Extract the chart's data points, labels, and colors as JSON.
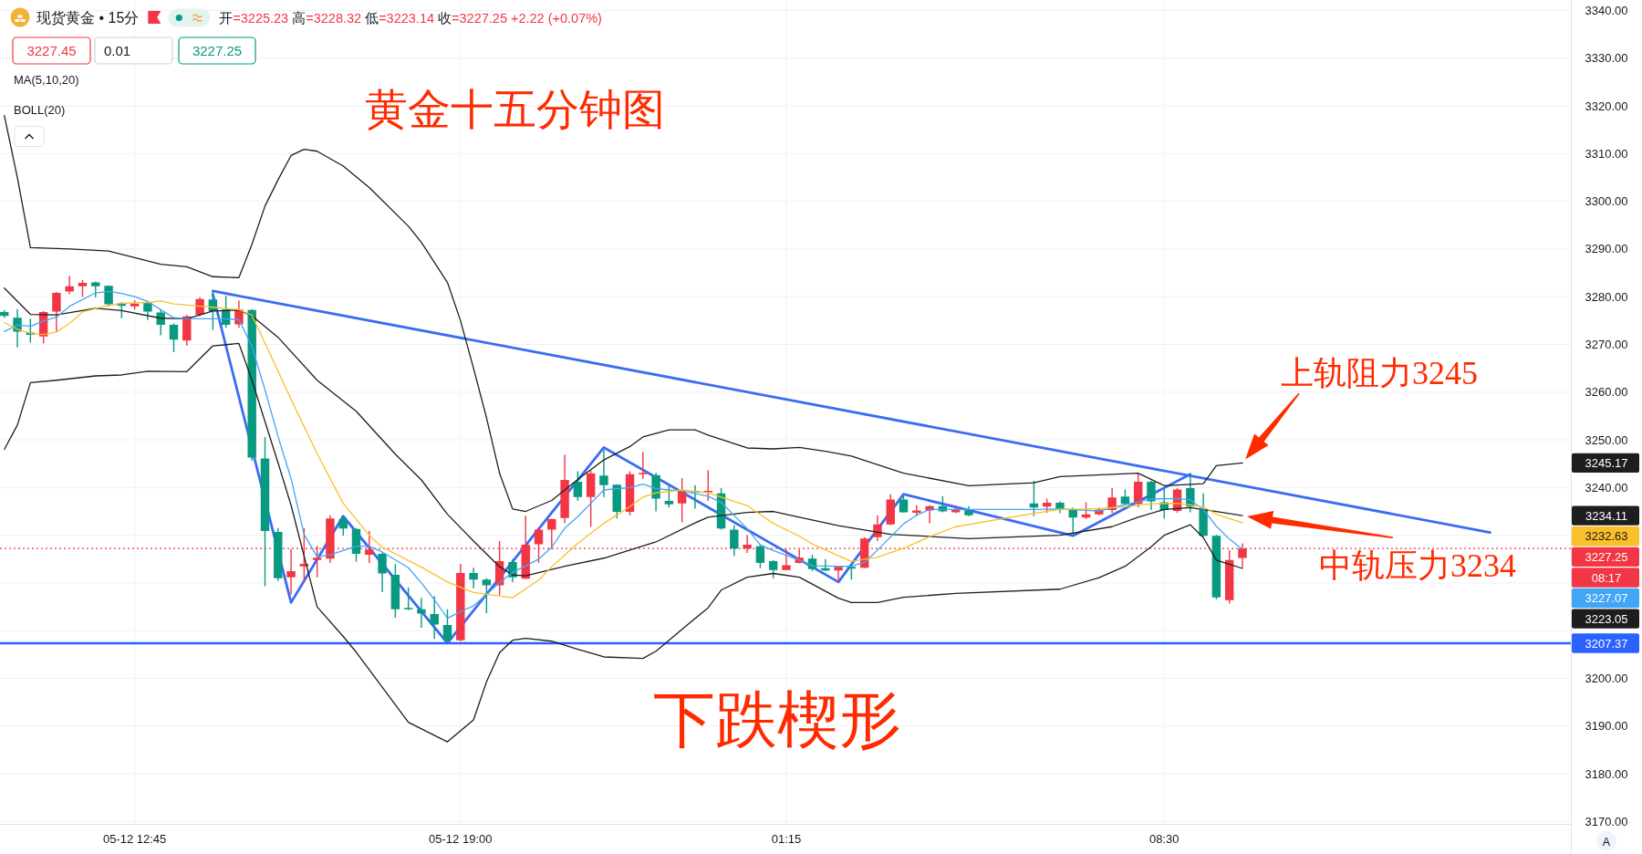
{
  "chart_data": {
    "type": "candlestick",
    "title": "黄金十五分钟图",
    "subtitle": "现货黄金 • 15分",
    "annotations": [
      "开=3225.23 高=3228.32 低=3223.14 收=3227.25 +2.22 (+0.07%)",
      "3227.45",
      "0.01",
      "3227.25",
      "MA(5,10,20)",
      "BOLL(20)",
      "3245.17",
      "3234.11",
      "3232.63",
      "08:17",
      "3227.07",
      "3223.05",
      "A",
      "下跌楔形",
      {
        "text": "上轨阻力3245",
        "x": "--05-13T10:00",
        "y": 3245.17
      },
      {
        "text": "中轨压力3234",
        "x": "--05-13T10:00",
        "y": 3234.11
      }
    ],
    "x": [
      "--05-12T10:15",
      "--05-12T10:30",
      "--05-12T10:45",
      "--05-12T11:00",
      "--05-12T11:15",
      "--05-12T11:30",
      "--05-12T11:45",
      "--05-12T12:00",
      "--05-12T12:15",
      "--05-12T12:30",
      "--05-12T12:45",
      "--05-12T13:00",
      "--05-12T13:15",
      "--05-12T13:30",
      "--05-12T13:45",
      "--05-12T14:00",
      "--05-12T14:15",
      "--05-12T14:30",
      "--05-12T14:45",
      "--05-12T15:00",
      "--05-12T15:15",
      "--05-12T15:30",
      "--05-12T15:45",
      "--05-12T16:00",
      "--05-12T16:15",
      "--05-12T16:30",
      "--05-12T16:45",
      "--05-12T17:00",
      "--05-12T17:15",
      "--05-12T17:30",
      "--05-12T17:45",
      "--05-12T18:00",
      "--05-12T18:15",
      "--05-12T18:30",
      "--05-12T18:45",
      "--05-12T19:00",
      "--05-12T19:15",
      "--05-12T19:30",
      "--05-12T19:45",
      "--05-12T20:00",
      "--05-12T20:15",
      "--05-12T20:30",
      "--05-12T20:45",
      "--05-12T21:00",
      "--05-12T21:15",
      "--05-12T21:30",
      "--05-12T21:45",
      "--05-12T22:00",
      "--05-12T22:15",
      "--05-12T22:30",
      "--05-12T22:45",
      "--05-12T23:00",
      "--05-12T23:15",
      "--05-12T23:30",
      "--05-12T23:45",
      "--05-13T00:00",
      "--05-13T00:15",
      "--05-13T00:30",
      "--05-13T00:45",
      "--05-13T01:00",
      "--05-13T01:15",
      "--05-13T01:30",
      "--05-13T01:45",
      "--05-13T02:00",
      "--05-13T02:15",
      "--05-13T02:30",
      "--05-13T02:45",
      "--05-13T03:00",
      "--05-13T03:15",
      "--05-13T03:30",
      "--05-13T03:45",
      "--05-13T04:00",
      "--05-13T04:15",
      "--05-13T04:30",
      "--05-13T04:45",
      "--05-13T06:00",
      "--05-13T06:15",
      "--05-13T06:30",
      "--05-13T06:45",
      "--05-13T07:00",
      "--05-13T07:15",
      "--05-13T07:30",
      "--05-13T07:45",
      "--05-13T08:00",
      "--05-13T08:15",
      "--05-13T08:30",
      "--05-13T08:45",
      "--05-13T09:00",
      "--05-13T09:15",
      "--05-13T09:30",
      "--05-13T09:45",
      "--05-13T10:00"
    ],
    "ohlc": [
      [
        3276.8,
        3277.2,
        3275.6,
        3276.0
      ],
      [
        3275.6,
        3277.4,
        3269.4,
        3272.7
      ],
      [
        3272.5,
        3275.4,
        3270.4,
        3272.0
      ],
      [
        3271.7,
        3277.0,
        3270.2,
        3276.8
      ],
      [
        3276.9,
        3281.0,
        3272.7,
        3280.8
      ],
      [
        3281.1,
        3284.4,
        3280.5,
        3282.2
      ],
      [
        3282.2,
        3283.5,
        3280.0,
        3282.9
      ],
      [
        3283.0,
        3283.2,
        3279.9,
        3282.2
      ],
      [
        3282.3,
        3282.4,
        3278.0,
        3278.4
      ],
      [
        3278.6,
        3278.9,
        3275.5,
        3278.1
      ],
      [
        3278.0,
        3279.3,
        3277.3,
        3278.5
      ],
      [
        3278.8,
        3279.2,
        3275.1,
        3276.9
      ],
      [
        3276.7,
        3277.3,
        3271.9,
        3274.1
      ],
      [
        3274.1,
        3274.4,
        3268.4,
        3271.0
      ],
      [
        3270.8,
        3276.2,
        3269.7,
        3275.9
      ],
      [
        3276.2,
        3279.9,
        3275.9,
        3279.5
      ],
      [
        3279.4,
        3281.4,
        3273.0,
        3277.0
      ],
      [
        3277.3,
        3280.2,
        3273.5,
        3274.1
      ],
      [
        3274.2,
        3279.2,
        3273.5,
        3277.3
      ],
      [
        3277.2,
        3277.4,
        3245.6,
        3246.3
      ],
      [
        3246.1,
        3250.6,
        3219.3,
        3230.9
      ],
      [
        3230.7,
        3231.5,
        3220.4,
        3221.0
      ],
      [
        3221.2,
        3227.1,
        3217.6,
        3222.5
      ],
      [
        3223.5,
        3231.5,
        3220.2,
        3224.0
      ],
      [
        3224.8,
        3227.8,
        3221.2,
        3225.3
      ],
      [
        3225.1,
        3234.2,
        3224.2,
        3233.5
      ],
      [
        3233.4,
        3234.1,
        3229.9,
        3231.4
      ],
      [
        3231.3,
        3231.5,
        3224.5,
        3226.1
      ],
      [
        3225.9,
        3230.9,
        3224.2,
        3227.0
      ],
      [
        3226.1,
        3226.4,
        3218.1,
        3222.0
      ],
      [
        3221.7,
        3223.9,
        3212.7,
        3214.5
      ],
      [
        3214.8,
        3219.1,
        3214.3,
        3214.5
      ],
      [
        3214.5,
        3216.9,
        3210.6,
        3213.6
      ],
      [
        3213.5,
        3217.2,
        3208.3,
        3211.3
      ],
      [
        3211.2,
        3214.5,
        3207.4,
        3208.0
      ],
      [
        3208.0,
        3224.0,
        3207.8,
        3222.1
      ],
      [
        3222.1,
        3223.2,
        3218.9,
        3220.7
      ],
      [
        3220.7,
        3221.0,
        3213.7,
        3219.5
      ],
      [
        3219.5,
        3228.8,
        3217.4,
        3224.6
      ],
      [
        3224.4,
        3225.0,
        3220.2,
        3221.2
      ],
      [
        3220.9,
        3234.1,
        3220.8,
        3228.0
      ],
      [
        3228.1,
        3231.6,
        3224.2,
        3231.2
      ],
      [
        3231.2,
        3233.5,
        3227.1,
        3233.4
      ],
      [
        3233.6,
        3246.9,
        3232.5,
        3241.6
      ],
      [
        3241.2,
        3243.4,
        3237.2,
        3238.0
      ],
      [
        3238.0,
        3243.5,
        3231.8,
        3243.0
      ],
      [
        3242.5,
        3247.9,
        3238.0,
        3240.5
      ],
      [
        3240.6,
        3240.7,
        3233.5,
        3234.9
      ],
      [
        3234.9,
        3243.4,
        3234.2,
        3242.8
      ],
      [
        3242.8,
        3247.5,
        3241.8,
        3243.1
      ],
      [
        3242.6,
        3243.1,
        3235.0,
        3237.7
      ],
      [
        3237.2,
        3240.4,
        3235.8,
        3236.5
      ],
      [
        3236.7,
        3242.0,
        3232.7,
        3239.1
      ],
      [
        3239.3,
        3240.5,
        3235.6,
        3239.0
      ],
      [
        3239.0,
        3243.6,
        3237.2,
        3239.3
      ],
      [
        3238.8,
        3239.9,
        3231.2,
        3231.4
      ],
      [
        3231.2,
        3232.1,
        3225.7,
        3227.2
      ],
      [
        3227.2,
        3230.1,
        3226.3,
        3228.0
      ],
      [
        3227.7,
        3228.0,
        3223.1,
        3224.2
      ],
      [
        3224.6,
        3224.8,
        3221.0,
        3222.7
      ],
      [
        3222.7,
        3227.1,
        3222.6,
        3223.7
      ],
      [
        3224.2,
        3227.0,
        3224.1,
        3225.3
      ],
      [
        3225.1,
        3225.9,
        3222.5,
        3222.9
      ],
      [
        3223.1,
        3225.0,
        3222.5,
        3222.6
      ],
      [
        3222.6,
        3223.6,
        3220.2,
        3223.4
      ],
      [
        3223.4,
        3223.6,
        3220.7,
        3223.0
      ],
      [
        3223.2,
        3229.6,
        3223.1,
        3229.3
      ],
      [
        3229.6,
        3234.2,
        3228.8,
        3232.3
      ],
      [
        3232.3,
        3238.6,
        3232.1,
        3237.5
      ],
      [
        3237.5,
        3238.2,
        3234.7,
        3234.8
      ],
      [
        3234.7,
        3236.3,
        3234.0,
        3235.2
      ],
      [
        3235.2,
        3236.3,
        3232.5,
        3236.1
      ],
      [
        3236.1,
        3238.2,
        3234.8,
        3235.0
      ],
      [
        3234.8,
        3236.3,
        3234.6,
        3235.3
      ],
      [
        3235.1,
        3236.1,
        3234.0,
        3234.2
      ],
      [
        3236.7,
        3241.4,
        3234.0,
        3235.8
      ],
      [
        3236.0,
        3237.7,
        3234.7,
        3236.8
      ],
      [
        3236.8,
        3237.1,
        3234.6,
        3235.6
      ],
      [
        3235.5,
        3235.8,
        3230.1,
        3233.7
      ],
      [
        3233.7,
        3236.9,
        3233.4,
        3234.4
      ],
      [
        3234.4,
        3235.8,
        3234.2,
        3235.4
      ],
      [
        3235.3,
        3239.9,
        3234.6,
        3237.9
      ],
      [
        3238.1,
        3239.6,
        3236.3,
        3236.6
      ],
      [
        3236.6,
        3242.8,
        3235.8,
        3241.2
      ],
      [
        3241.2,
        3241.4,
        3235.3,
        3237.1
      ],
      [
        3236.9,
        3239.8,
        3233.5,
        3235.3
      ],
      [
        3235.1,
        3239.9,
        3234.7,
        3239.6
      ],
      [
        3239.9,
        3242.8,
        3234.8,
        3236.0
      ],
      [
        3235.4,
        3238.8,
        3229.7,
        3229.9
      ],
      [
        3229.9,
        3230.1,
        3216.6,
        3217.0
      ],
      [
        3216.4,
        3226.9,
        3215.7,
        3224.8
      ],
      [
        3225.23,
        3228.32,
        3223.14,
        3227.25
      ]
    ],
    "colors": [
      "#089981",
      "#089981",
      "#089981",
      "#f23645",
      "#f23645",
      "#f23645",
      "#f23645",
      "#089981",
      "#089981",
      "#089981",
      "#f23645",
      "#089981",
      "#089981",
      "#089981",
      "#f23645",
      "#f23645",
      "#089981",
      "#089981",
      "#f23645",
      "#089981",
      "#089981",
      "#089981",
      "#f23645",
      "#f23645",
      "#f23645",
      "#f23645",
      "#089981",
      "#089981",
      "#f23645",
      "#089981",
      "#089981",
      "#089981",
      "#089981",
      "#089981",
      "#089981",
      "#f23645",
      "#089981",
      "#089981",
      "#f23645",
      "#089981",
      "#f23645",
      "#f23645",
      "#f23645",
      "#f23645",
      "#089981",
      "#f23645",
      "#089981",
      "#089981",
      "#f23645",
      "#f23645",
      "#089981",
      "#089981",
      "#f23645",
      "#089981",
      "#f23645",
      "#089981",
      "#089981",
      "#f23645",
      "#089981",
      "#089981",
      "#f23645",
      "#f23645",
      "#089981",
      "#089981",
      "#f23645",
      "#089981",
      "#f23645",
      "#f23645",
      "#f23645",
      "#089981",
      "#f23645",
      "#f23645",
      "#089981",
      "#f23645",
      "#089981",
      "#089981",
      "#f23645",
      "#089981",
      "#089981",
      "#f23645",
      "#f23645",
      "#f23645",
      "#089981",
      "#f23645",
      "#089981",
      "#089981",
      "#f23645",
      "#089981",
      "#089981",
      "#089981",
      "#f23645",
      "#f23645"
    ],
    "series": [
      {
        "type": "line",
        "color": "#1e1e1e",
        "x": [
          "--05-12T10:15",
          "--05-12T10:30",
          "--05-12T10:45",
          "--05-12T11:30",
          "--05-12T12:15",
          "--05-12T13:15",
          "--05-12T13:45",
          "--05-12T14:15",
          "--05-12T14:45",
          "--05-12T15:00",
          "--05-12T15:15",
          "--05-12T15:30",
          "--05-12T15:45",
          "--05-12T16:00",
          "--05-12T16:15",
          "--05-12T16:45",
          "--05-12T17:15",
          "--05-12T18:00",
          "--05-12T18:15",
          "--05-12T18:45",
          "--05-12T19:00",
          "--05-12T19:15",
          "--05-12T19:30",
          "--05-12T19:45",
          "--05-12T20:00",
          "--05-12T20:15",
          "--05-12T20:45",
          "--05-12T21:15",
          "--05-12T21:45",
          "--05-12T22:15",
          "--05-12T22:30",
          "--05-12T23:00",
          "--05-12T23:30",
          "--05-12T23:45",
          "--05-13T00:30",
          "--05-13T01:00",
          "--05-13T01:30",
          "--05-13T02:00",
          "--05-13T02:30",
          "--05-13T03:30",
          "--05-13T04:45",
          "--05-13T06:00",
          "--05-13T06:30",
          "--05-13T08:00",
          "--05-13T08:30",
          "--05-13T09:15",
          "--05-13T09:30",
          "--05-13T10:00"
        ],
        "values": [
          3318,
          3305,
          3290.3,
          3290,
          3289.6,
          3286.8,
          3286.3,
          3284.2,
          3284,
          3291,
          3299,
          3304.5,
          3309.6,
          3310.9,
          3310.5,
          3307.4,
          3302.9,
          3294.8,
          3291.4,
          3283,
          3275,
          3265,
          3254.6,
          3243,
          3235.5,
          3235,
          3237.3,
          3241.7,
          3245.8,
          3248.6,
          3250.6,
          3252.1,
          3252.1,
          3251,
          3248.3,
          3248.1,
          3248.4,
          3247.6,
          3246.6,
          3243,
          3240.4,
          3241,
          3242.3,
          3243,
          3240.4,
          3240.8,
          3244.6,
          3245.17
        ]
      },
      {
        "type": "line",
        "color": "#1e1e1e",
        "x": [
          "--05-12T10:15",
          "--05-12T10:45",
          "--05-12T11:15",
          "--05-12T12:00",
          "--05-12T12:30",
          "--05-12T13:15",
          "--05-12T13:45",
          "--05-12T14:15",
          "--05-12T14:45",
          "--05-12T15:00",
          "--05-12T15:30",
          "--05-12T16:15",
          "--05-12T17:00",
          "--05-12T17:45",
          "--05-12T18:15",
          "--05-12T18:45",
          "--05-12T19:15",
          "--05-12T19:45",
          "--05-12T20:00",
          "--05-12T20:15",
          "--05-12T21:00",
          "--05-12T21:45",
          "--05-12T22:45",
          "--05-12T23:30",
          "--05-12T23:45",
          "--05-13T00:30",
          "--05-13T01:00",
          "--05-13T01:30",
          "--05-13T02:15",
          "--05-13T03:15",
          "--05-13T04:45",
          "--05-13T06:30",
          "--05-13T07:30",
          "--05-13T08:00",
          "--05-13T08:30",
          "--05-13T09:00",
          "--05-13T09:30",
          "--05-13T10:00"
        ],
        "values": [
          3281.8,
          3276.3,
          3276.2,
          3277.6,
          3277.1,
          3275.5,
          3275.4,
          3277,
          3277.2,
          3276,
          3271.5,
          3262.5,
          3256,
          3247,
          3241.6,
          3234.4,
          3228.8,
          3223.4,
          3221.7,
          3221.5,
          3223.5,
          3225.2,
          3228.6,
          3232.6,
          3233.8,
          3234.8,
          3235,
          3233.8,
          3232,
          3230.2,
          3229.3,
          3230,
          3231.8,
          3233.8,
          3235.4,
          3235.8,
          3235,
          3234.11
        ]
      },
      {
        "type": "line",
        "color": "#1e1e1e",
        "x": [
          "--05-12T10:15",
          "--05-12T10:30",
          "--05-12T10:45",
          "--05-12T11:15",
          "--05-12T12:00",
          "--05-12T12:30",
          "--05-12T13:00",
          "--05-12T13:45",
          "--05-12T14:15",
          "--05-12T14:45",
          "--05-12T15:00",
          "--05-12T15:30",
          "--05-12T15:45",
          "--05-12T16:15",
          "--05-12T16:45",
          "--05-12T17:00",
          "--05-12T18:00",
          "--05-12T18:45",
          "--05-12T19:15",
          "--05-12T19:30",
          "--05-12T19:45",
          "--05-12T20:00",
          "--05-12T20:15",
          "--05-12T20:45",
          "--05-12T21:15",
          "--05-12T21:45",
          "--05-12T22:30",
          "--05-12T22:45",
          "--05-12T23:15",
          "--05-12T23:45",
          "--05-13T00:00",
          "--05-13T00:30",
          "--05-13T01:00",
          "--05-13T01:30",
          "--05-13T02:15",
          "--05-13T02:30",
          "--05-13T03:00",
          "--05-13T03:30",
          "--05-13T04:30",
          "--05-13T06:30",
          "--05-13T07:15",
          "--05-13T07:45",
          "--05-13T08:15",
          "--05-13T08:30",
          "--05-13T09:00",
          "--05-13T09:15",
          "--05-13T09:30",
          "--05-13T10:00"
        ],
        "values": [
          3248,
          3253.1,
          3262,
          3262.5,
          3263.4,
          3263.6,
          3264.4,
          3264.3,
          3269.7,
          3270.2,
          3262.5,
          3245.2,
          3236.3,
          3215,
          3208.8,
          3205.5,
          3190.8,
          3186.7,
          3191.3,
          3199.3,
          3205.4,
          3208,
          3208.4,
          3207.8,
          3206.1,
          3204.5,
          3204.2,
          3205.7,
          3210.3,
          3214.8,
          3218.5,
          3221.2,
          3222,
          3221.2,
          3216.8,
          3215.9,
          3215.9,
          3217,
          3217.8,
          3218.7,
          3221.1,
          3223.5,
          3227.6,
          3230,
          3232.2,
          3229.5,
          3224.8,
          3223.05
        ]
      },
      {
        "type": "line",
        "color": "#42a5f5",
        "x": [
          "--05-12T10:15",
          "--05-12T10:30",
          "--05-12T10:45",
          "--05-12T11:00",
          "--05-12T11:15",
          "--05-12T11:30",
          "--05-12T12:00",
          "--05-12T12:15",
          "--05-12T12:30",
          "--05-12T12:45",
          "--05-12T13:00",
          "--05-12T13:15",
          "--05-12T13:30",
          "--05-12T13:45",
          "--05-12T14:15",
          "--05-12T14:30",
          "--05-12T14:45",
          "--05-12T15:00",
          "--05-12T15:15",
          "--05-12T15:30",
          "--05-12T15:45",
          "--05-12T16:00",
          "--05-12T16:15",
          "--05-12T16:30",
          "--05-12T17:00",
          "--05-12T17:15",
          "--05-12T17:30",
          "--05-12T18:00",
          "--05-12T18:15",
          "--05-12T18:30",
          "--05-12T18:45",
          "--05-12T19:00",
          "--05-12T19:15",
          "--05-12T19:30",
          "--05-12T19:45",
          "--05-12T20:00",
          "--05-12T20:30",
          "--05-12T20:45",
          "--05-12T21:00",
          "--05-12T21:15",
          "--05-12T21:30",
          "--05-12T21:45",
          "--05-12T22:15",
          "--05-12T22:30",
          "--05-12T22:45",
          "--05-12T23:00",
          "--05-12T23:15",
          "--05-12T23:45",
          "--05-13T00:00",
          "--05-13T00:30",
          "--05-13T00:45",
          "--05-13T01:00",
          "--05-13T01:30",
          "--05-13T01:45",
          "--05-13T02:15",
          "--05-13T02:30",
          "--05-13T02:45",
          "--05-13T03:00",
          "--05-13T03:30",
          "--05-13T03:45",
          "--05-13T04:00",
          "--05-13T04:30",
          "--05-13T06:00",
          "--05-13T06:30",
          "--05-13T07:15",
          "--05-13T07:45",
          "--05-13T08:15",
          "--05-13T08:45",
          "--05-13T09:00",
          "--05-13T09:15",
          "--05-13T09:30",
          "--05-13T09:45",
          "--05-13T10:00"
        ],
        "values": [
          3272.7,
          3274.1,
          3273.8,
          3274.9,
          3275.7,
          3278,
          3280.8,
          3281.1,
          3280.7,
          3280,
          3279,
          3277.3,
          3275.6,
          3275.4,
          3275.4,
          3275.4,
          3275.2,
          3269.6,
          3260.5,
          3250.7,
          3241.9,
          3230.2,
          3225.5,
          3225.9,
          3227.7,
          3227.7,
          3226.5,
          3223.2,
          3220,
          3216.5,
          3212.6,
          3214,
          3215.2,
          3217.6,
          3220.1,
          3222.2,
          3225,
          3227.5,
          3231.5,
          3233.9,
          3236.7,
          3239.5,
          3240,
          3240.7,
          3239.8,
          3239.5,
          3239.3,
          3238.2,
          3236.9,
          3231.4,
          3228,
          3226.8,
          3224.8,
          3223.6,
          3223.5,
          3223.5,
          3224.3,
          3226.9,
          3232.4,
          3234.2,
          3235.4,
          3235.4,
          3235.4,
          3235.5,
          3235.1,
          3236.4,
          3237.6,
          3237.7,
          3237.4,
          3235.4,
          3231.9,
          3229.2,
          3227.07
        ]
      },
      {
        "type": "line",
        "color": "#f9c02a",
        "x": [
          "--05-12T10:15",
          "--05-12T10:30",
          "--05-12T10:45",
          "--05-12T11:00",
          "--05-12T11:15",
          "--05-12T11:30",
          "--05-12T11:45",
          "--05-12T12:15",
          "--05-12T12:30",
          "--05-12T13:00",
          "--05-12T13:15",
          "--05-12T13:30",
          "--05-12T14:00",
          "--05-12T14:15",
          "--05-12T14:45",
          "--05-12T15:00",
          "--05-12T15:15",
          "--05-12T15:30",
          "--05-12T15:45",
          "--05-12T16:15",
          "--05-12T16:45",
          "--05-12T17:15",
          "--05-12T17:30",
          "--05-12T18:15",
          "--05-12T18:45",
          "--05-12T19:15",
          "--05-12T20:00",
          "--05-12T20:30",
          "--05-12T20:45",
          "--05-12T21:15",
          "--05-12T21:45",
          "--05-12T22:15",
          "--05-12T22:30",
          "--05-12T22:45",
          "--05-12T23:15",
          "--05-12T23:45",
          "--05-13T00:30",
          "--05-13T01:00",
          "--05-13T01:30",
          "--05-13T01:45",
          "--05-13T02:15",
          "--05-13T02:30",
          "--05-13T03:00",
          "--05-13T03:30",
          "--05-13T04:00",
          "--05-13T04:30",
          "--05-13T06:00",
          "--05-13T06:30",
          "--05-13T07:15",
          "--05-13T07:45",
          "--05-13T08:15",
          "--05-13T08:45",
          "--05-13T09:15",
          "--05-13T09:30",
          "--05-13T09:45",
          "--05-13T10:00"
        ],
        "values": [
          3274.6,
          3273.2,
          3272.3,
          3272.1,
          3272.6,
          3274.4,
          3276.8,
          3278.2,
          3278.6,
          3278.8,
          3279.1,
          3278.5,
          3278,
          3277.8,
          3277.3,
          3276.1,
          3270.3,
          3264.4,
          3258.5,
          3247.1,
          3236.7,
          3230,
          3227.5,
          3223.3,
          3220.2,
          3218,
          3216.9,
          3220.6,
          3223.4,
          3228.3,
          3232.5,
          3236,
          3238,
          3238.9,
          3239.5,
          3238.9,
          3236.2,
          3232.5,
          3229.8,
          3228.2,
          3225.7,
          3224.5,
          3225.4,
          3227.3,
          3229.7,
          3231.8,
          3234.6,
          3235.4,
          3235.6,
          3236,
          3236.6,
          3236.7,
          3236,
          3234.4,
          3233.5,
          3232.63
        ]
      },
      {
        "type": "line",
        "color": "#3a6cf4",
        "x": [
          "--05-12T14:15",
          "--05-13T14:45"
        ],
        "values": [
          3281.2,
          3230.6
        ]
      },
      {
        "type": "line",
        "color": "#3a6cf4",
        "x": [
          "--05-12T14:15",
          "--05-12T15:45",
          "--05-12T16:45",
          "--05-12T18:45",
          "--05-12T21:45",
          "--05-13T02:15",
          "--05-13T03:30",
          "--05-13T06:45",
          "--05-13T09:00"
        ],
        "values": [
          3280.5,
          3215.9,
          3234.0,
          3207.4,
          3248.4,
          3220.2,
          3238.6,
          3229.9,
          3242.8
        ]
      }
    ],
    "xlim": [
      "--05-12T10:10",
      "--05-13T16:18"
    ],
    "xticks": [
      {
        "value": "--05-12T12:45",
        "label": "05-12 12:45"
      },
      {
        "value": "--05-12T19:00",
        "label": "05-12 19:00"
      },
      {
        "value": "--05-13T01:15",
        "label": "01:15"
      },
      {
        "value": "--05-13T08:30",
        "label": "08:30"
      }
    ],
    "ylim": [
      3169.5,
      3342.2
    ],
    "yticks": [
      {
        "value": 3170,
        "label": "3170.00"
      },
      {
        "value": 3180,
        "label": "3180.00"
      },
      {
        "value": 3190,
        "label": "3190.00"
      },
      {
        "value": 3200,
        "label": "3200.00"
      },
      {
        "value": 3210,
        "label": null
      },
      {
        "value": 3220,
        "label": null
      },
      {
        "value": 3230,
        "label": null
      },
      {
        "value": 3240,
        "label": "3240.00"
      },
      {
        "value": 3250,
        "label": "3250.00"
      },
      {
        "value": 3260,
        "label": "3260.00"
      },
      {
        "value": 3270,
        "label": "3270.00"
      },
      {
        "value": 3280,
        "label": "3280.00"
      },
      {
        "value": 3290,
        "label": "3290.00"
      },
      {
        "value": 3300,
        "label": "3300.00"
      },
      {
        "value": 3310,
        "label": "3310.00"
      },
      {
        "value": 3320,
        "label": "3320.00"
      },
      {
        "value": 3330,
        "label": "3330.00"
      },
      {
        "value": 3340,
        "label": "3340.00"
      }
    ],
    "ref_lines": [
      {
        "axis": "y",
        "value": 3227.25,
        "label": "3227.25",
        "color": "#f23645",
        "line_style": "dotted"
      },
      {
        "axis": "y",
        "value": 3207.37,
        "label": "3207.37",
        "color": "#2962ff",
        "line_style": "solid"
      }
    ],
    "grid": true
  }
}
